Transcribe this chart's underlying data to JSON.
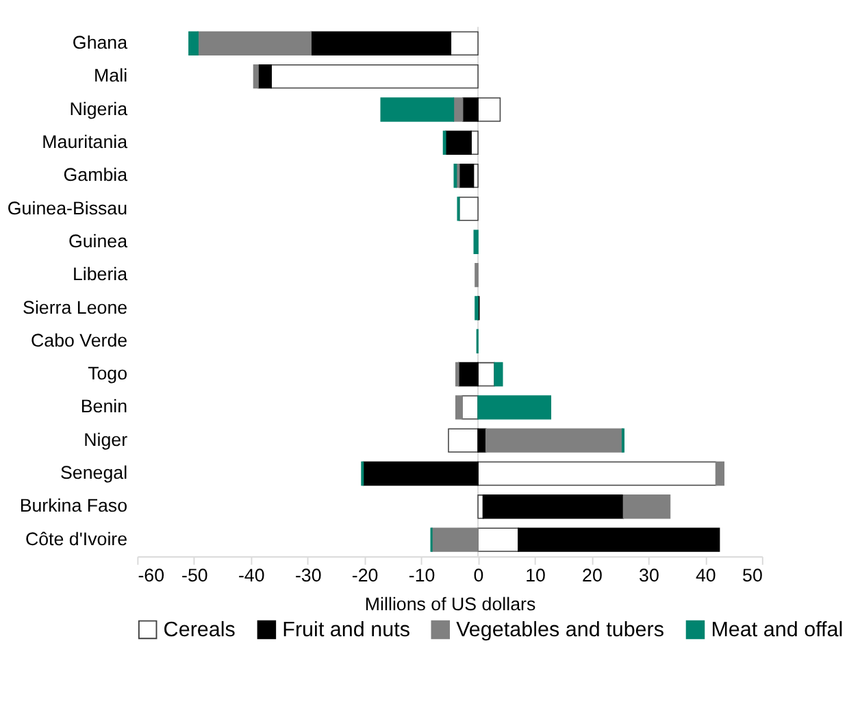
{
  "chart_data": {
    "type": "bar",
    "orientation": "horizontal",
    "stacked": true,
    "xlabel": "Millions of US dollars",
    "xlim": [
      -60,
      50
    ],
    "xticks": [
      -60,
      -50,
      -40,
      -30,
      -20,
      -10,
      0,
      10,
      20,
      30,
      40,
      50
    ],
    "legend": "bottom",
    "grid": false,
    "categories": [
      "Ghana",
      "Mali",
      "Nigeria",
      "Mauritania",
      "Gambia",
      "Guinea-Bissau",
      "Guinea",
      "Liberia",
      "Sierra Leone",
      "Cabo Verde",
      "Togo",
      "Benin",
      "Niger",
      "Senegal",
      "Burkina Faso",
      "Côte d'Ivoire"
    ],
    "series": [
      {
        "name": "Cereals",
        "color": "#ffffff",
        "values": [
          -4.8,
          -36.4,
          3.9,
          -1.2,
          -0.8,
          -3.3,
          null,
          null,
          null,
          null,
          2.9,
          -2.8,
          -5.2,
          41.9,
          0.9,
          7.1
        ]
      },
      {
        "name": "Fruit and nuts",
        "color": "#000000",
        "values": [
          -24.6,
          -2.3,
          -2.7,
          -4.5,
          -2.5,
          null,
          null,
          null,
          0.2,
          null,
          -3.4,
          null,
          1.4,
          -20.2,
          24.7,
          35.4
        ]
      },
      {
        "name": "Vegetables and tubers",
        "color": "#808080",
        "values": [
          -19.9,
          -0.8,
          -1.6,
          null,
          -0.5,
          null,
          null,
          -0.5,
          null,
          null,
          -0.5,
          -1.1,
          24.0,
          1.4,
          8.2,
          -8.1
        ]
      },
      {
        "name": "Meat and offal",
        "color": "#00846f",
        "values": [
          -1.6,
          null,
          -12.8,
          -0.4,
          -0.4,
          -0.3,
          -0.7,
          null,
          -0.5,
          -0.2,
          1.4,
          12.8,
          0.3,
          -0.3,
          null,
          -0.2
        ]
      }
    ],
    "ref_lines": [
      {
        "axis": "x",
        "value": 0,
        "color": "#d9d9d9"
      }
    ]
  }
}
